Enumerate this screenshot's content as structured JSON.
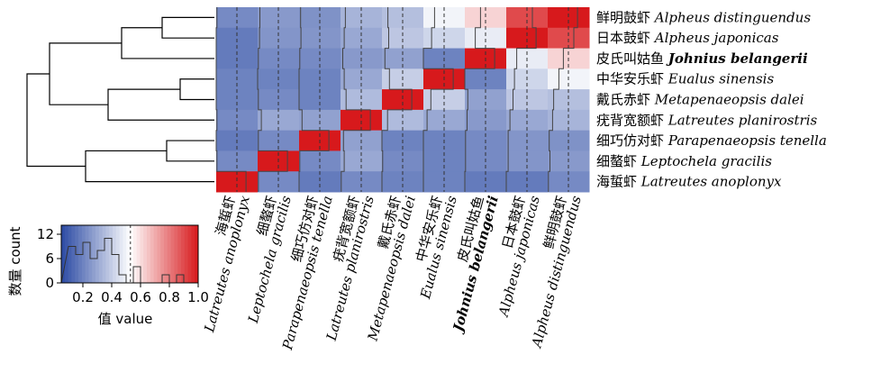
{
  "chart_data": {
    "type": "heatmap",
    "title": "",
    "species": [
      {
        "cn": "海蜇虾",
        "latin": "Latreutes anoplonyx",
        "bold": false
      },
      {
        "cn": "细螯虾",
        "latin": "Leptochela gracilis",
        "bold": false
      },
      {
        "cn": "细巧仿对虾",
        "latin": "Parapenaeopsis tenella",
        "bold": false
      },
      {
        "cn": "疣背宽额虾",
        "latin": "Latreutes planirostris",
        "bold": false
      },
      {
        "cn": "戴氏赤虾",
        "latin": "Metapenaeopsis dalei",
        "bold": false
      },
      {
        "cn": "中华安乐虾",
        "latin": "Eualus sinensis",
        "bold": false
      },
      {
        "cn": "皮氏叫姑鱼",
        "latin": "Johnius belangerii",
        "bold": true
      },
      {
        "cn": "日本鼓虾",
        "latin": "Alpheus japonicas",
        "bold": false
      },
      {
        "cn": "鲜明鼓虾",
        "latin": "Alpheus distinguendus",
        "bold": false
      }
    ],
    "row_order": [
      8,
      7,
      6,
      5,
      4,
      3,
      2,
      1,
      0
    ],
    "matrix": [
      [
        1.0,
        0.22,
        0.18,
        0.22,
        0.2,
        0.2,
        0.18,
        0.18,
        0.22
      ],
      [
        0.22,
        1.0,
        0.22,
        0.3,
        0.22,
        0.2,
        0.22,
        0.25,
        0.26
      ],
      [
        0.18,
        0.22,
        1.0,
        0.28,
        0.2,
        0.2,
        0.22,
        0.25,
        0.24
      ],
      [
        0.22,
        0.3,
        0.28,
        1.0,
        0.35,
        0.3,
        0.26,
        0.3,
        0.33
      ],
      [
        0.2,
        0.22,
        0.2,
        0.35,
        1.0,
        0.4,
        0.28,
        0.38,
        0.36
      ],
      [
        0.2,
        0.2,
        0.2,
        0.3,
        0.4,
        1.0,
        0.2,
        0.42,
        0.5
      ],
      [
        0.18,
        0.22,
        0.22,
        0.26,
        0.28,
        0.2,
        1.0,
        0.48,
        0.62
      ],
      [
        0.18,
        0.25,
        0.25,
        0.3,
        0.38,
        0.42,
        0.48,
        1.0,
        0.9
      ],
      [
        0.22,
        0.26,
        0.24,
        0.33,
        0.36,
        0.5,
        0.62,
        0.9,
        1.0
      ]
    ],
    "colorscale": {
      "min": 0.05,
      "max": 1.0,
      "low": "#2b4aa3",
      "mid": "#ffffff",
      "high": "#d7191c",
      "midpoint": 0.53
    },
    "key": {
      "ylabel": "数量 count",
      "xlabel": "值 value",
      "yticks": [
        "0",
        "6",
        "12"
      ],
      "xticks": [
        "0.2",
        "0.4",
        "0.6",
        "0.8",
        "1.0"
      ],
      "xtick_values": [
        0.2,
        0.4,
        0.6,
        0.8,
        1.0
      ],
      "histogram": [
        {
          "bin": 0.1,
          "count": 9
        },
        {
          "bin": 0.15,
          "count": 7
        },
        {
          "bin": 0.2,
          "count": 10
        },
        {
          "bin": 0.25,
          "count": 6
        },
        {
          "bin": 0.3,
          "count": 8
        },
        {
          "bin": 0.35,
          "count": 11
        },
        {
          "bin": 0.4,
          "count": 7
        },
        {
          "bin": 0.45,
          "count": 2
        },
        {
          "bin": 0.5,
          "count": 0
        },
        {
          "bin": 0.55,
          "count": 4
        },
        {
          "bin": 0.6,
          "count": 0
        },
        {
          "bin": 0.65,
          "count": 0
        },
        {
          "bin": 0.7,
          "count": 0
        },
        {
          "bin": 0.75,
          "count": 2
        },
        {
          "bin": 0.8,
          "count": 0
        },
        {
          "bin": 0.85,
          "count": 2
        },
        {
          "bin": 0.9,
          "count": 0
        },
        {
          "bin": 0.95,
          "count": 0
        }
      ]
    },
    "grid": false
  }
}
